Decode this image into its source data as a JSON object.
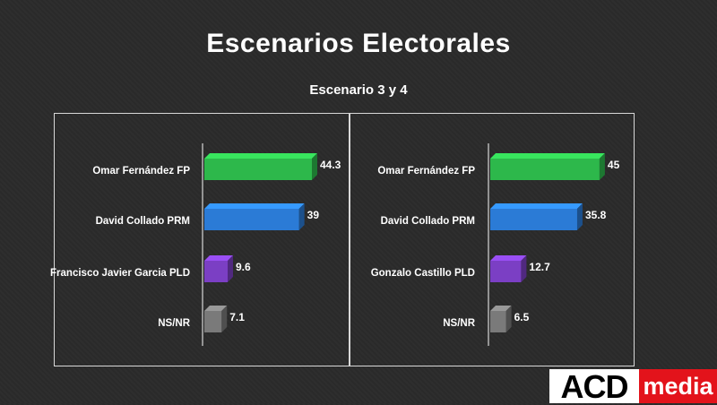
{
  "header": {
    "title": "Escenarios Electorales",
    "subtitle": "Escenario 3 y 4"
  },
  "chart_data": [
    {
      "type": "bar",
      "orientation": "horizontal",
      "categories": [
        "Omar Fernández FP",
        "David Collado PRM",
        "Francisco Javier Garcia PLD",
        "NS/NR"
      ],
      "values": [
        44.3,
        39,
        9.6,
        7.1
      ],
      "value_labels": [
        "44.3",
        "39",
        "9.6",
        "7.1"
      ],
      "colors": [
        "#2db84b",
        "#2b7bd6",
        "#7b3fc4",
        "#7a7a7a"
      ]
    },
    {
      "type": "bar",
      "orientation": "horizontal",
      "categories": [
        "Omar Fernández FP",
        "David Collado PRM",
        "Gonzalo Castillo PLD",
        "NS/NR"
      ],
      "values": [
        45,
        35.8,
        12.7,
        6.5
      ],
      "value_labels": [
        "45",
        "35.8",
        "12.7",
        "6.5"
      ],
      "colors": [
        "#2db84b",
        "#2b7bd6",
        "#7b3fc4",
        "#7a7a7a"
      ]
    }
  ],
  "logo": {
    "part1": "ACD",
    "part2": "media"
  }
}
